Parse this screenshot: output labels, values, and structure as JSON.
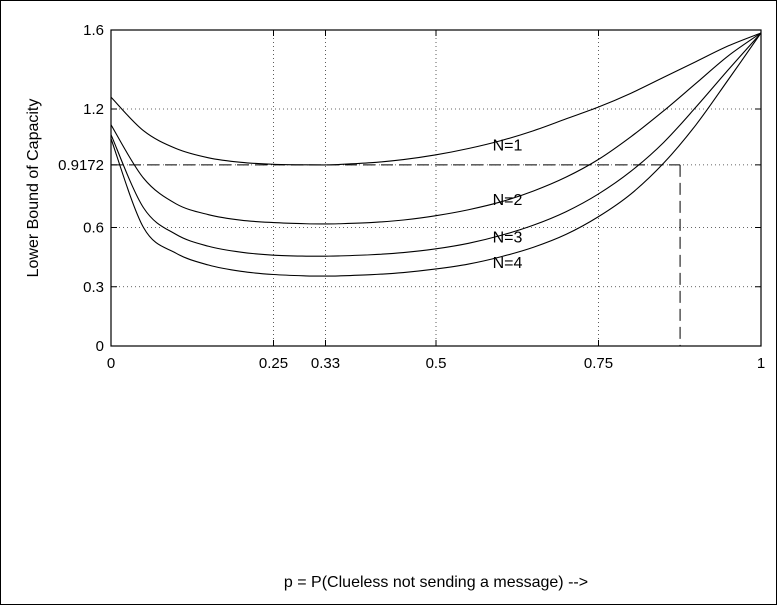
{
  "chart_data": {
    "type": "line",
    "xlabel": "p = P(Clueless not sending a message) -->",
    "ylabel": "Lower Bound of Capacity",
    "xlim": [
      0,
      1
    ],
    "ylim": [
      0,
      1.6
    ],
    "x_ticks": [
      0,
      0.25,
      0.33,
      0.5,
      0.75,
      1
    ],
    "x_tick_labels": [
      "0",
      "0.25",
      "0.33",
      "0.5",
      "0.75",
      "1"
    ],
    "y_ticks": [
      0,
      0.3,
      0.6,
      0.9172,
      1.2,
      1.6
    ],
    "y_tick_labels": [
      "0",
      "0.3",
      "0.6",
      "0.9172",
      "1.2",
      "1.6"
    ],
    "grid": true,
    "x": [
      0,
      0.05,
      0.1,
      0.15,
      0.2,
      0.25,
      0.3,
      0.33,
      0.35,
      0.4,
      0.45,
      0.5,
      0.55,
      0.6,
      0.65,
      0.7,
      0.75,
      0.8,
      0.85,
      0.9,
      0.95,
      1
    ],
    "series": [
      {
        "name": "N=1",
        "values": [
          1.26,
          1.09,
          1.0,
          0.953,
          0.93,
          0.92,
          0.9172,
          0.917,
          0.919,
          0.928,
          0.944,
          0.968,
          1.0,
          1.04,
          1.09,
          1.15,
          1.21,
          1.28,
          1.36,
          1.44,
          1.52,
          1.585
        ]
      },
      {
        "name": "N=2",
        "values": [
          1.12,
          0.85,
          0.72,
          0.665,
          0.637,
          0.625,
          0.619,
          0.618,
          0.619,
          0.625,
          0.638,
          0.66,
          0.69,
          0.73,
          0.785,
          0.855,
          0.945,
          1.06,
          1.19,
          1.33,
          1.47,
          1.585
        ]
      },
      {
        "name": "N=3",
        "values": [
          1.07,
          0.7,
          0.565,
          0.505,
          0.475,
          0.46,
          0.455,
          0.455,
          0.456,
          0.462,
          0.473,
          0.492,
          0.52,
          0.56,
          0.612,
          0.68,
          0.77,
          0.885,
          1.03,
          1.21,
          1.4,
          1.585
        ]
      },
      {
        "name": "N=4",
        "values": [
          1.05,
          0.6,
          0.47,
          0.41,
          0.378,
          0.362,
          0.355,
          0.354,
          0.355,
          0.361,
          0.372,
          0.39,
          0.415,
          0.452,
          0.5,
          0.565,
          0.655,
          0.77,
          0.925,
          1.12,
          1.35,
          1.585
        ]
      }
    ],
    "annotations": [
      {
        "text": "N=1",
        "x": 0.61,
        "y": 0.99
      },
      {
        "text": "N=2",
        "x": 0.61,
        "y": 0.715
      },
      {
        "text": "N=3",
        "x": 0.61,
        "y": 0.525
      },
      {
        "text": "N=4",
        "x": 0.61,
        "y": 0.395
      }
    ],
    "reference_lines": {
      "y_value": 0.9172,
      "x_value": 0.8755
    }
  }
}
